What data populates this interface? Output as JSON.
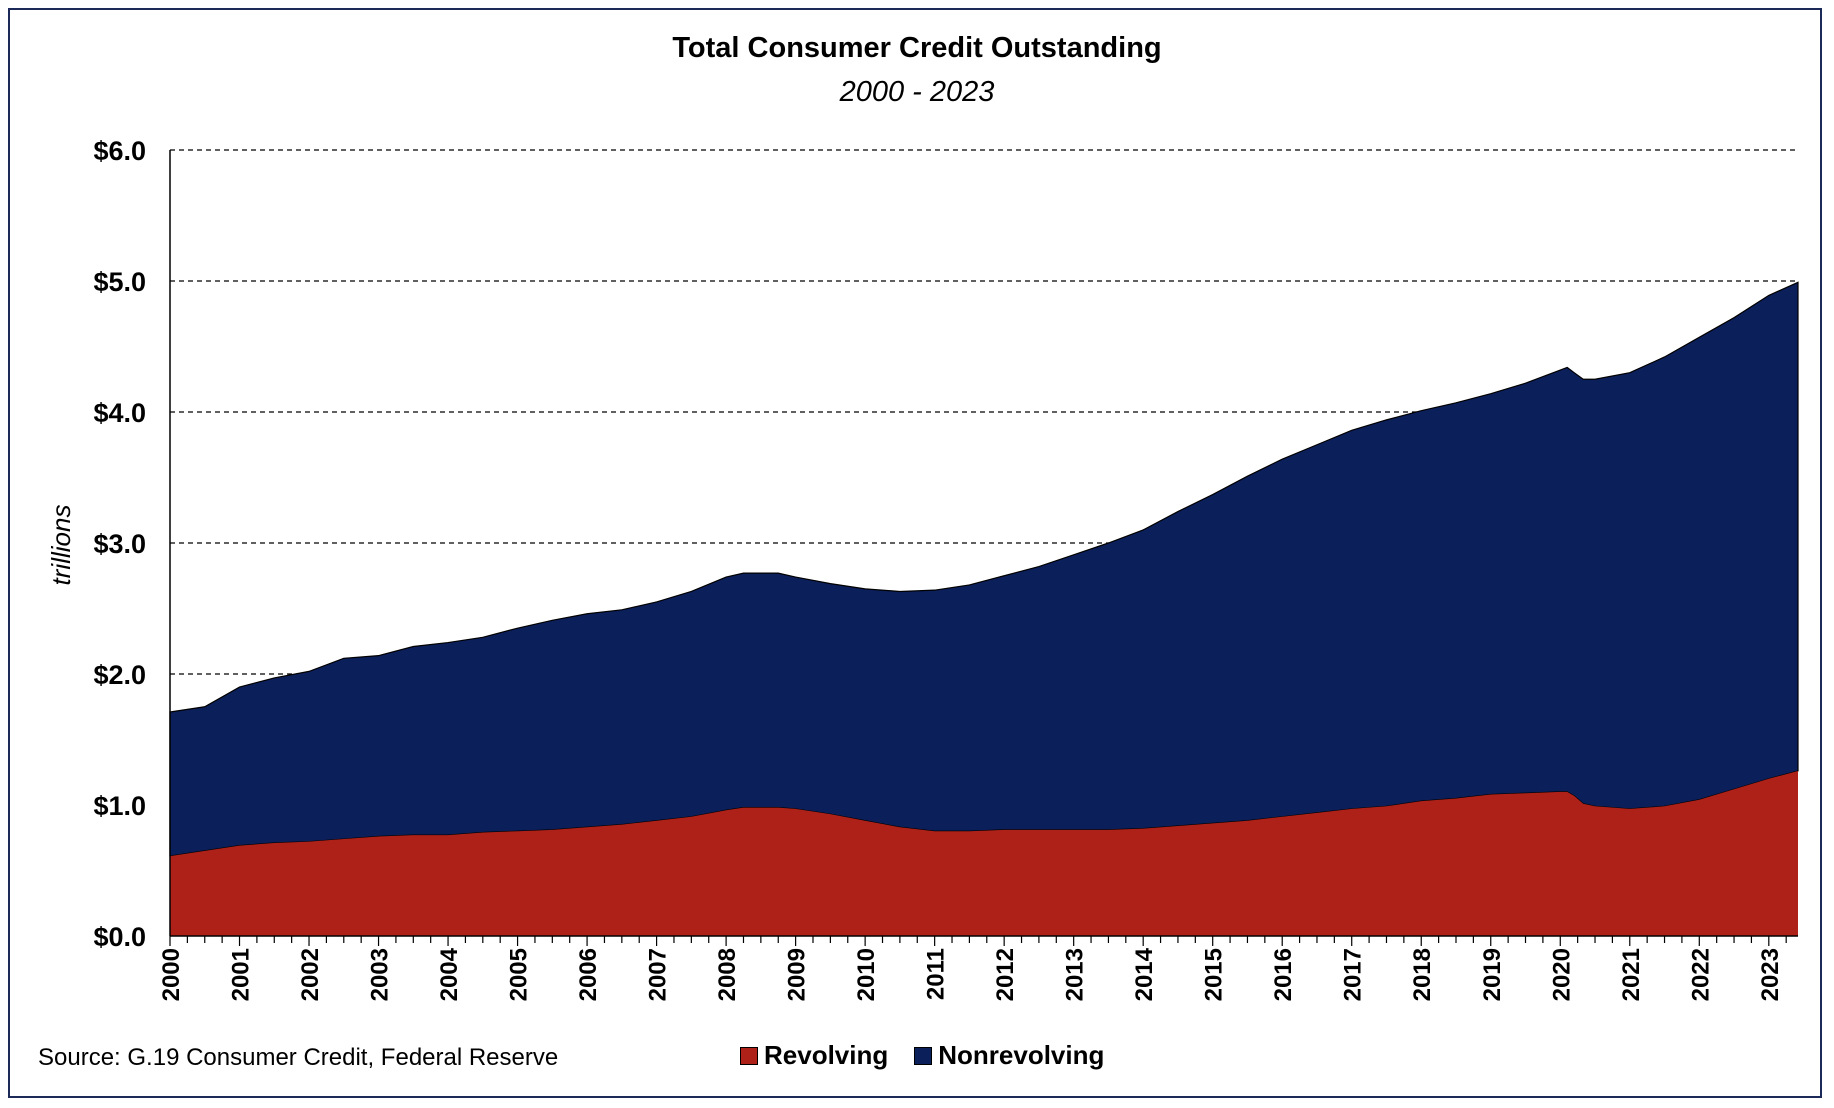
{
  "colors": {
    "revolving": "#ae2119",
    "nonrevolving": "#0b1f5b",
    "frame": "#1c2a5a"
  },
  "source": "Source: G.19 Consumer Credit, Federal Reserve",
  "chart_data": {
    "type": "area",
    "stacked": true,
    "title": "Total Consumer Credit Outstanding",
    "subtitle": "2000 - 2023",
    "ylabel": "trillions",
    "xlabel": "",
    "ylim": [
      0,
      6
    ],
    "xlim": [
      2000,
      2023.42
    ],
    "grid": true,
    "legend_position": "bottom-center",
    "y_ticks": [
      "$0.0",
      "$1.0",
      "$2.0",
      "$3.0",
      "$4.0",
      "$5.0",
      "$6.0"
    ],
    "x_ticks": [
      "2000",
      "2001",
      "2002",
      "2003",
      "2004",
      "2005",
      "2006",
      "2007",
      "2008",
      "2009",
      "2010",
      "2011",
      "2012",
      "2013",
      "2014",
      "2015",
      "2016",
      "2017",
      "2018",
      "2019",
      "2020",
      "2021",
      "2022",
      "2023"
    ],
    "x": [
      2000,
      2000.5,
      2001,
      2001.5,
      2002,
      2002.5,
      2003,
      2003.5,
      2004,
      2004.5,
      2005,
      2005.5,
      2006,
      2006.5,
      2007,
      2007.5,
      2008,
      2008.25,
      2008.5,
      2008.75,
      2009,
      2009.5,
      2010,
      2010.5,
      2011,
      2011.5,
      2012,
      2012.5,
      2013,
      2013.5,
      2014,
      2014.5,
      2015,
      2015.5,
      2016,
      2016.5,
      2017,
      2017.5,
      2018,
      2018.5,
      2019,
      2019.5,
      2020,
      2020.1,
      2020.2,
      2020.33,
      2020.5,
      2021,
      2021.5,
      2022,
      2022.5,
      2023,
      2023.42
    ],
    "series": [
      {
        "name": "Revolving",
        "values": [
          0.61,
          0.65,
          0.69,
          0.71,
          0.72,
          0.74,
          0.76,
          0.77,
          0.77,
          0.79,
          0.8,
          0.81,
          0.83,
          0.85,
          0.88,
          0.91,
          0.96,
          0.98,
          0.98,
          0.98,
          0.97,
          0.93,
          0.88,
          0.83,
          0.8,
          0.8,
          0.81,
          0.81,
          0.81,
          0.81,
          0.82,
          0.84,
          0.86,
          0.88,
          0.91,
          0.94,
          0.97,
          0.99,
          1.03,
          1.05,
          1.08,
          1.09,
          1.1,
          1.1,
          1.07,
          1.01,
          0.99,
          0.97,
          0.99,
          1.04,
          1.12,
          1.2,
          1.26
        ]
      },
      {
        "name": "Nonrevolving",
        "values": [
          1.1,
          1.1,
          1.21,
          1.26,
          1.3,
          1.38,
          1.38,
          1.44,
          1.47,
          1.49,
          1.55,
          1.6,
          1.63,
          1.64,
          1.67,
          1.72,
          1.78,
          1.79,
          1.79,
          1.79,
          1.77,
          1.76,
          1.77,
          1.8,
          1.84,
          1.88,
          1.94,
          2.01,
          2.1,
          2.19,
          2.28,
          2.4,
          2.51,
          2.63,
          2.73,
          2.81,
          2.89,
          2.95,
          2.98,
          3.02,
          3.06,
          3.13,
          3.22,
          3.24,
          3.23,
          3.24,
          3.26,
          3.33,
          3.43,
          3.53,
          3.6,
          3.69,
          3.73
        ]
      }
    ]
  }
}
